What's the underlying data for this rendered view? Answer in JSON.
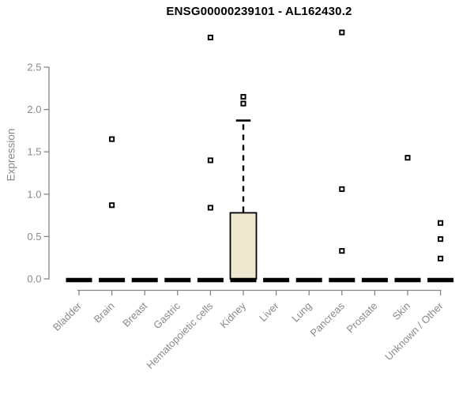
{
  "chart_data": {
    "type": "boxplot",
    "title": "ENSG00000239101 - AL162430.2",
    "ylabel": "Expression",
    "xlabel": "",
    "ylim": [
      0.0,
      2.5
    ],
    "yticks": [
      "0.0",
      "0.5",
      "1.0",
      "1.5",
      "2.0",
      "2.5"
    ],
    "grid": false,
    "legend": "none",
    "categories": [
      "Bladder",
      "Brain",
      "Breast",
      "Gastric",
      "Hematopoietic cells",
      "Kidney",
      "Liver",
      "Lung",
      "Pancreas",
      "Prostate",
      "Skin",
      "Unknown / Other"
    ],
    "series": [
      {
        "category": "Bladder",
        "q1": 0,
        "median": 0,
        "q3": 0,
        "whisker_low": 0,
        "whisker_high": 0,
        "outliers": []
      },
      {
        "category": "Brain",
        "q1": 0,
        "median": 0,
        "q3": 0,
        "whisker_low": 0,
        "whisker_high": 0,
        "outliers": [
          0.87,
          1.65
        ]
      },
      {
        "category": "Breast",
        "q1": 0,
        "median": 0,
        "q3": 0,
        "whisker_low": 0,
        "whisker_high": 0,
        "outliers": []
      },
      {
        "category": "Gastric",
        "q1": 0,
        "median": 0,
        "q3": 0,
        "whisker_low": 0,
        "whisker_high": 0,
        "outliers": []
      },
      {
        "category": "Hematopoietic cells",
        "q1": 0,
        "median": 0,
        "q3": 0,
        "whisker_low": 0,
        "whisker_high": 0,
        "outliers": [
          0.84,
          1.4,
          2.85
        ]
      },
      {
        "category": "Kidney",
        "q1": 0,
        "median": 0,
        "q3": 0.78,
        "whisker_low": 0,
        "whisker_high": 1.87,
        "outliers": [
          2.07,
          2.15
        ]
      },
      {
        "category": "Liver",
        "q1": 0,
        "median": 0,
        "q3": 0,
        "whisker_low": 0,
        "whisker_high": 0,
        "outliers": []
      },
      {
        "category": "Lung",
        "q1": 0,
        "median": 0,
        "q3": 0,
        "whisker_low": 0,
        "whisker_high": 0,
        "outliers": []
      },
      {
        "category": "Pancreas",
        "q1": 0,
        "median": 0,
        "q3": 0,
        "whisker_low": 0,
        "whisker_high": 0,
        "outliers": [
          0.33,
          1.06,
          2.91
        ]
      },
      {
        "category": "Prostate",
        "q1": 0,
        "median": 0,
        "q3": 0,
        "whisker_low": 0,
        "whisker_high": 0,
        "outliers": []
      },
      {
        "category": "Skin",
        "q1": 0,
        "median": 0,
        "q3": 0,
        "whisker_low": 0,
        "whisker_high": 0,
        "outliers": [
          1.43
        ]
      },
      {
        "category": "Unknown / Other",
        "q1": 0,
        "median": 0,
        "q3": 0,
        "whisker_low": 0,
        "whisker_high": 0,
        "outliers": [
          0.24,
          0.47,
          0.66
        ]
      }
    ],
    "colors": {
      "box_fill": "#EDE8CF",
      "box_stroke": "#000000",
      "median": "#000000",
      "outlier": "#000000",
      "axis": "#878787",
      "text": "#8a8a8a",
      "title": "#000000",
      "background": "#ffffff"
    }
  }
}
